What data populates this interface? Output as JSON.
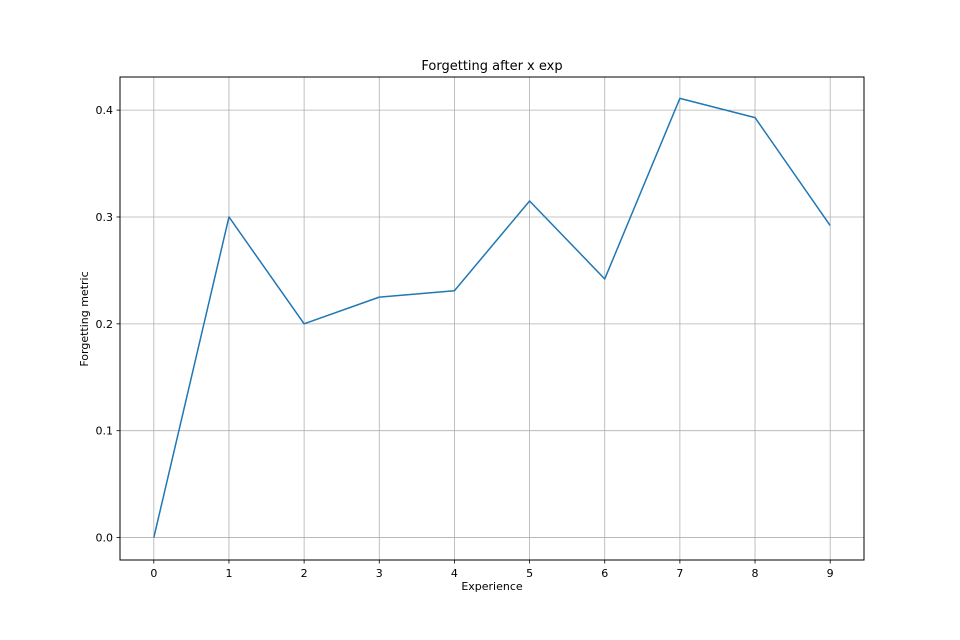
{
  "chart_data": {
    "type": "line",
    "title": "Forgetting after x exp",
    "xlabel": "Experience",
    "ylabel": "Forgetting metric",
    "x": [
      0,
      1,
      2,
      3,
      4,
      5,
      6,
      7,
      8,
      9
    ],
    "series": [
      {
        "values": [
          0.0,
          0.3,
          0.2,
          0.225,
          0.231,
          0.315,
          0.242,
          0.411,
          0.393,
          0.292
        ],
        "color": "#1f77b4"
      }
    ],
    "xlim": [
      -0.45,
      9.45
    ],
    "ylim": [
      -0.021,
      0.431
    ],
    "xticks": [
      0,
      1,
      2,
      3,
      4,
      5,
      6,
      7,
      8,
      9
    ],
    "xtick_labels": [
      "0",
      "1",
      "2",
      "3",
      "4",
      "5",
      "6",
      "7",
      "8",
      "9"
    ],
    "yticks": [
      0.0,
      0.1,
      0.2,
      0.3,
      0.4
    ],
    "ytick_labels": [
      "0.0",
      "0.1",
      "0.2",
      "0.3",
      "0.4"
    ],
    "grid": true,
    "legend": false
  }
}
